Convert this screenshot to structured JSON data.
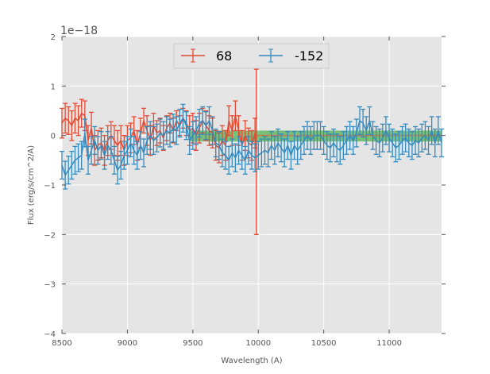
{
  "chart_data": {
    "type": "errorbar-line",
    "title": "",
    "xlabel": "Wavelength (A)",
    "ylabel": "Flux (erg/s/cm^2/A)",
    "offset_text": "1e−18",
    "xlim": [
      8500,
      11400
    ],
    "ylim": [
      -4,
      2
    ],
    "xticks": [
      8500,
      9000,
      9500,
      10000,
      10500,
      11000
    ],
    "xtick_labels": [
      "8500",
      "9000",
      "9500",
      "10000",
      "10500",
      "11000"
    ],
    "yticks": [
      -4,
      -3,
      -2,
      -1,
      0,
      1,
      2
    ],
    "ytick_labels": [
      "−4",
      "−3",
      "−2",
      "−1",
      "0",
      "1",
      "2"
    ],
    "grid": true,
    "legend": {
      "placement": "top-center",
      "entries": [
        "68",
        "-152"
      ]
    },
    "band": {
      "x": [
        9470,
        11400
      ],
      "y": [
        -0.12,
        0.1
      ],
      "color": "#4daf4a"
    },
    "series": [
      {
        "name": "68",
        "color": "#E24A33",
        "x": [
          8500,
          8525,
          8550,
          8575,
          8600,
          8625,
          8650,
          8675,
          8700,
          8725,
          8750,
          8775,
          8800,
          8825,
          8850,
          8875,
          8900,
          8925,
          8950,
          8975,
          9000,
          9025,
          9050,
          9075,
          9100,
          9125,
          9150,
          9175,
          9200,
          9225,
          9250,
          9275,
          9300,
          9325,
          9350,
          9375,
          9400,
          9425,
          9450,
          9475,
          9500,
          9525,
          9550,
          9575,
          9600,
          9625,
          9650,
          9675,
          9700,
          9725,
          9750,
          9775,
          9800,
          9825,
          9850,
          9875,
          9900,
          9925,
          9950,
          9975,
          9985
        ],
        "y": [
          0.25,
          0.35,
          0.3,
          0.2,
          0.35,
          0.3,
          0.45,
          0.4,
          -0.1,
          0.15,
          -0.3,
          -0.2,
          -0.15,
          -0.3,
          -0.1,
          0.0,
          -0.1,
          -0.2,
          -0.1,
          -0.3,
          -0.1,
          -0.05,
          0.1,
          -0.2,
          0.05,
          0.3,
          0.1,
          -0.1,
          0.2,
          0.05,
          0.1,
          -0.05,
          0.15,
          0.25,
          0.1,
          0.3,
          0.2,
          0.35,
          0.25,
          0.1,
          0.15,
          0.0,
          0.15,
          0.3,
          0.2,
          0.1,
          0.05,
          -0.2,
          -0.25,
          -0.1,
          -0.2,
          0.3,
          0.1,
          0.4,
          0.1,
          -0.2,
          0.0,
          -0.15,
          -0.2,
          0.05,
          -0.33
        ],
        "yerr": [
          0.3,
          0.3,
          0.28,
          0.3,
          0.3,
          0.3,
          0.28,
          0.3,
          0.3,
          0.32,
          0.3,
          0.3,
          0.3,
          0.3,
          0.3,
          0.28,
          0.3,
          0.3,
          0.3,
          0.3,
          0.3,
          0.3,
          0.28,
          0.3,
          0.3,
          0.25,
          0.3,
          0.3,
          0.25,
          0.25,
          0.25,
          0.25,
          0.25,
          0.2,
          0.25,
          0.2,
          0.2,
          0.2,
          0.25,
          0.3,
          0.3,
          0.3,
          0.3,
          0.25,
          0.3,
          0.3,
          0.3,
          0.3,
          0.3,
          0.3,
          0.3,
          0.3,
          0.3,
          0.3,
          0.3,
          0.3,
          0.3,
          0.3,
          0.3,
          0.3,
          1.67
        ],
        "tail_x": [
          9985,
          11400
        ],
        "tail_y": 0.0
      },
      {
        "name": "-152",
        "color": "#348ABD",
        "x": [
          8500,
          8525,
          8550,
          8575,
          8600,
          8625,
          8650,
          8675,
          8700,
          8725,
          8750,
          8775,
          8800,
          8825,
          8850,
          8875,
          8900,
          8925,
          8950,
          8975,
          9000,
          9025,
          9050,
          9075,
          9100,
          9125,
          9150,
          9175,
          9200,
          9225,
          9250,
          9275,
          9300,
          9325,
          9350,
          9375,
          9400,
          9425,
          9450,
          9475,
          9500,
          9525,
          9550,
          9575,
          9600,
          9625,
          9650,
          9675,
          9700,
          9725,
          9750,
          9775,
          9800,
          9825,
          9850,
          9875,
          9900,
          9925,
          9950,
          9975,
          10000,
          10025,
          10050,
          10075,
          10100,
          10125,
          10150,
          10175,
          10200,
          10225,
          10250,
          10275,
          10300,
          10325,
          10350,
          10375,
          10400,
          10425,
          10450,
          10475,
          10500,
          10525,
          10550,
          10575,
          10600,
          10625,
          10650,
          10675,
          10700,
          10725,
          10750,
          10775,
          10800,
          10825,
          10850,
          10875,
          10900,
          10925,
          10950,
          10975,
          11000,
          11025,
          11050,
          11075,
          11100,
          11125,
          11150,
          11175,
          11200,
          11225,
          11250,
          11275,
          11300,
          11325,
          11350,
          11375,
          11400
        ],
        "y": [
          -0.6,
          -0.8,
          -0.7,
          -0.6,
          -0.5,
          -0.45,
          -0.4,
          0.05,
          -0.5,
          -0.3,
          -0.1,
          -0.3,
          -0.2,
          -0.4,
          -0.2,
          -0.3,
          -0.5,
          -0.7,
          -0.6,
          -0.4,
          -0.3,
          -0.15,
          -0.3,
          -0.4,
          -0.2,
          -0.35,
          -0.1,
          0.0,
          -0.1,
          -0.05,
          0.05,
          0.0,
          0.1,
          0.05,
          0.15,
          0.1,
          0.25,
          0.35,
          0.2,
          -0.1,
          0.0,
          0.1,
          0.25,
          0.3,
          0.2,
          0.3,
          0.1,
          -0.15,
          -0.2,
          -0.35,
          -0.4,
          -0.5,
          -0.35,
          -0.45,
          -0.3,
          -0.4,
          -0.5,
          -0.3,
          -0.4,
          -0.45,
          -0.4,
          -0.35,
          -0.3,
          -0.35,
          -0.2,
          -0.3,
          -0.15,
          -0.25,
          -0.35,
          -0.2,
          -0.4,
          -0.2,
          -0.3,
          -0.2,
          -0.1,
          0.0,
          -0.1,
          0.0,
          0.0,
          0.0,
          -0.1,
          -0.2,
          -0.25,
          -0.15,
          -0.25,
          -0.3,
          -0.2,
          -0.1,
          0.0,
          -0.1,
          0.05,
          0.3,
          0.25,
          0.1,
          0.3,
          0.0,
          -0.1,
          -0.15,
          -0.05,
          0.1,
          -0.05,
          -0.15,
          -0.25,
          -0.2,
          -0.1,
          -0.05,
          -0.15,
          -0.2,
          -0.1,
          -0.15,
          -0.05,
          0.0,
          -0.1,
          0.1,
          -0.15,
          0.1,
          -0.15
        ],
        "yerr": 0.28
      }
    ]
  }
}
